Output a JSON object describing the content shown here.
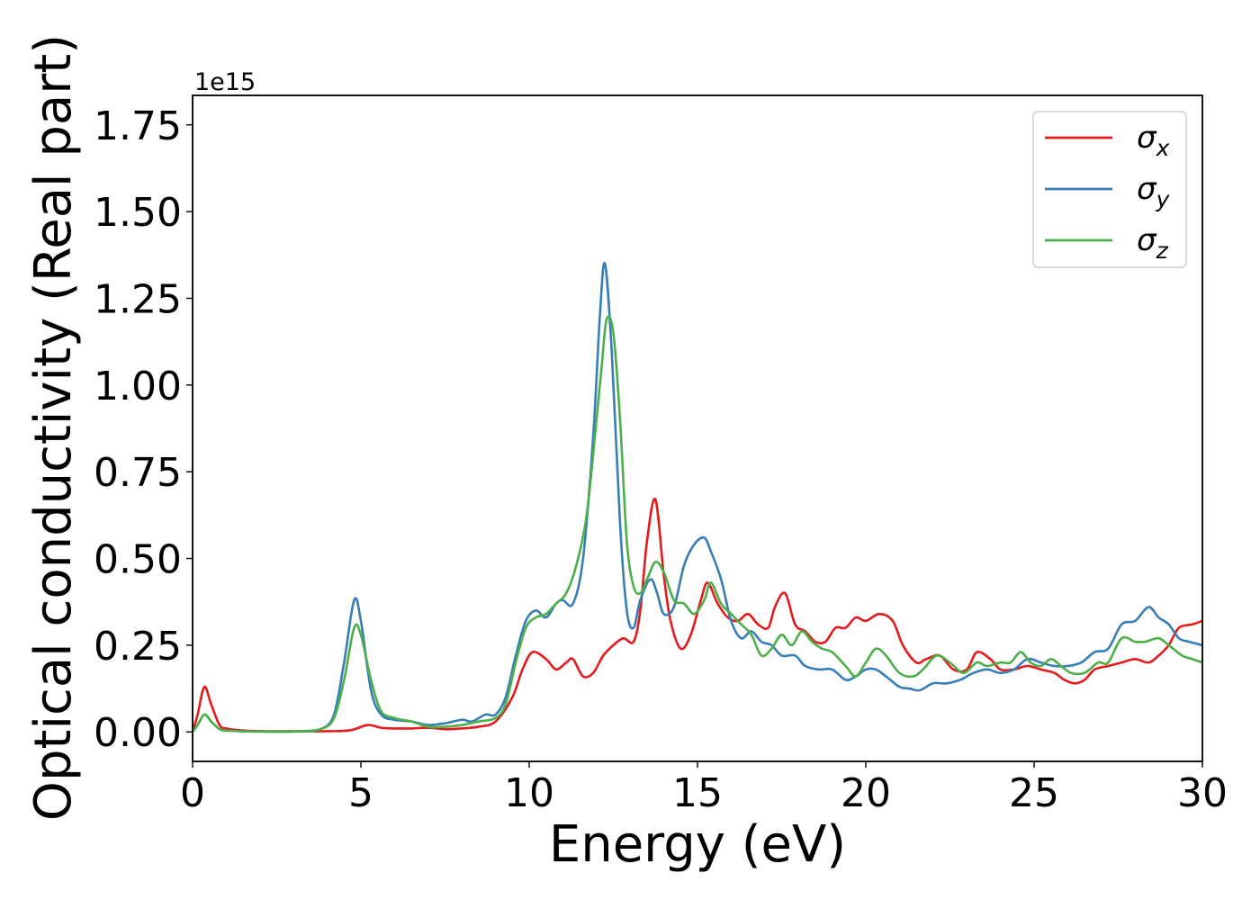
{
  "chart_data": {
    "type": "line",
    "title": "",
    "xlabel": "Energy (eV)",
    "ylabel": "Optical conductivity (Real part)",
    "y_offset_text": "1e15",
    "y_scale_factor": 1000000000000000.0,
    "xlim": [
      0,
      30
    ],
    "ylim": [
      -0.085,
      1.835
    ],
    "xticks": [
      0,
      5,
      10,
      15,
      20,
      25,
      30
    ],
    "xtick_labels": [
      "0",
      "5",
      "10",
      "15",
      "20",
      "25",
      "30"
    ],
    "yticks": [
      0.0,
      0.25,
      0.5,
      0.75,
      1.0,
      1.25,
      1.5,
      1.75
    ],
    "ytick_labels": [
      "0.00",
      "0.25",
      "0.50",
      "0.75",
      "1.00",
      "1.25",
      "1.50",
      "1.75"
    ],
    "grid": false,
    "legend_position": "top-right",
    "series": [
      {
        "name": "σx",
        "label_main": "σ",
        "label_sub": "x",
        "color": "#e41a1c",
        "x": [
          0,
          0.15,
          0.35,
          0.55,
          0.8,
          1.0,
          1.5,
          2,
          3,
          4,
          4.7,
          5.2,
          5.6,
          6,
          6.5,
          7,
          7.5,
          8,
          8.5,
          9,
          9.5,
          9.8,
          10.1,
          10.5,
          10.8,
          11.1,
          11.3,
          11.6,
          11.9,
          12.2,
          12.5,
          12.8,
          13.1,
          13.3,
          13.5,
          13.75,
          14,
          14.2,
          14.5,
          14.8,
          15.1,
          15.3,
          15.6,
          15.9,
          16.2,
          16.5,
          16.8,
          17.1,
          17.3,
          17.6,
          17.9,
          18.2,
          18.5,
          18.8,
          19.1,
          19.4,
          19.7,
          20.0,
          20.4,
          20.8,
          21.1,
          21.5,
          21.8,
          22.2,
          22.6,
          23.0,
          23.3,
          23.7,
          24.0,
          24.4,
          24.8,
          25.2,
          25.6,
          25.9,
          26.2,
          26.5,
          26.8,
          27.2,
          27.6,
          28.0,
          28.4,
          28.7,
          29.0,
          29.3,
          29.7,
          30
        ],
        "y": [
          0.0,
          0.05,
          0.13,
          0.08,
          0.02,
          0.01,
          0.004,
          0.002,
          0.002,
          0.002,
          0.005,
          0.02,
          0.012,
          0.01,
          0.01,
          0.012,
          0.008,
          0.01,
          0.015,
          0.03,
          0.1,
          0.18,
          0.23,
          0.21,
          0.18,
          0.2,
          0.21,
          0.16,
          0.17,
          0.22,
          0.25,
          0.27,
          0.26,
          0.35,
          0.55,
          0.67,
          0.45,
          0.32,
          0.24,
          0.28,
          0.38,
          0.43,
          0.37,
          0.33,
          0.32,
          0.34,
          0.31,
          0.3,
          0.36,
          0.4,
          0.31,
          0.29,
          0.26,
          0.26,
          0.3,
          0.3,
          0.33,
          0.32,
          0.34,
          0.32,
          0.25,
          0.2,
          0.21,
          0.22,
          0.18,
          0.18,
          0.23,
          0.21,
          0.18,
          0.18,
          0.19,
          0.18,
          0.17,
          0.15,
          0.14,
          0.15,
          0.18,
          0.19,
          0.2,
          0.21,
          0.2,
          0.22,
          0.25,
          0.3,
          0.31,
          0.32
        ]
      },
      {
        "name": "σy",
        "label_main": "σ",
        "label_sub": "y",
        "color": "#377eb8",
        "x": [
          0,
          0.15,
          0.35,
          0.55,
          0.8,
          1.0,
          1.5,
          2,
          3,
          3.8,
          4.2,
          4.5,
          4.8,
          5.0,
          5.3,
          5.6,
          6,
          6.5,
          7,
          7.5,
          8,
          8.3,
          8.7,
          9,
          9.3,
          9.6,
          9.9,
          10.2,
          10.5,
          10.8,
          11.0,
          11.3,
          11.6,
          11.9,
          12.1,
          12.25,
          12.45,
          12.7,
          12.9,
          13.1,
          13.3,
          13.6,
          13.8,
          14.0,
          14.3,
          14.6,
          14.9,
          15.2,
          15.4,
          15.7,
          16.0,
          16.3,
          16.6,
          16.9,
          17.2,
          17.5,
          17.9,
          18.2,
          18.6,
          19.0,
          19.4,
          19.7,
          20.0,
          20.3,
          20.6,
          21.0,
          21.3,
          21.6,
          22.0,
          22.4,
          22.8,
          23.2,
          23.6,
          24.0,
          24.4,
          24.8,
          25.2,
          25.6,
          26.0,
          26.4,
          26.8,
          27.2,
          27.6,
          28.0,
          28.4,
          28.7,
          29.0,
          29.3,
          29.6,
          30
        ],
        "y": [
          0.0,
          0.02,
          0.05,
          0.03,
          0.008,
          0.004,
          0.002,
          0.001,
          0.001,
          0.008,
          0.05,
          0.2,
          0.38,
          0.32,
          0.12,
          0.05,
          0.035,
          0.03,
          0.02,
          0.025,
          0.035,
          0.03,
          0.05,
          0.05,
          0.1,
          0.22,
          0.32,
          0.35,
          0.33,
          0.37,
          0.38,
          0.37,
          0.5,
          0.85,
          1.2,
          1.35,
          1.1,
          0.6,
          0.35,
          0.3,
          0.38,
          0.44,
          0.4,
          0.34,
          0.36,
          0.48,
          0.54,
          0.56,
          0.52,
          0.44,
          0.32,
          0.27,
          0.29,
          0.26,
          0.25,
          0.22,
          0.22,
          0.19,
          0.18,
          0.18,
          0.15,
          0.16,
          0.18,
          0.18,
          0.16,
          0.13,
          0.125,
          0.12,
          0.14,
          0.14,
          0.15,
          0.17,
          0.18,
          0.17,
          0.18,
          0.21,
          0.2,
          0.19,
          0.19,
          0.2,
          0.23,
          0.24,
          0.31,
          0.32,
          0.36,
          0.33,
          0.31,
          0.27,
          0.26,
          0.25
        ]
      },
      {
        "name": "σz",
        "label_main": "σ",
        "label_sub": "z",
        "color": "#4daf4a",
        "x": [
          0,
          0.15,
          0.35,
          0.55,
          0.8,
          1.0,
          1.5,
          2,
          3,
          3.8,
          4.2,
          4.5,
          4.8,
          5.0,
          5.3,
          5.6,
          6,
          6.5,
          7,
          7.5,
          8,
          8.5,
          9,
          9.3,
          9.6,
          9.9,
          10.2,
          10.5,
          10.8,
          11.1,
          11.4,
          11.7,
          11.95,
          12.15,
          12.3,
          12.5,
          12.7,
          12.9,
          13.1,
          13.3,
          13.5,
          13.75,
          14.0,
          14.3,
          14.6,
          14.9,
          15.2,
          15.4,
          15.7,
          16.0,
          16.3,
          16.6,
          16.9,
          17.2,
          17.5,
          17.8,
          18.1,
          18.4,
          18.7,
          19.0,
          19.4,
          19.7,
          20.0,
          20.3,
          20.6,
          21.0,
          21.4,
          21.7,
          22.1,
          22.5,
          22.9,
          23.3,
          23.6,
          24.0,
          24.3,
          24.6,
          24.9,
          25.2,
          25.5,
          25.8,
          26.1,
          26.5,
          26.9,
          27.2,
          27.6,
          28.0,
          28.3,
          28.7,
          29.0,
          29.4,
          29.7,
          30
        ],
        "y": [
          0.0,
          0.02,
          0.05,
          0.03,
          0.008,
          0.004,
          0.002,
          0.001,
          0.001,
          0.008,
          0.04,
          0.15,
          0.3,
          0.28,
          0.15,
          0.06,
          0.04,
          0.03,
          0.015,
          0.015,
          0.02,
          0.03,
          0.04,
          0.08,
          0.2,
          0.3,
          0.33,
          0.34,
          0.37,
          0.4,
          0.48,
          0.62,
          0.85,
          1.05,
          1.19,
          1.15,
          0.9,
          0.55,
          0.42,
          0.4,
          0.44,
          0.49,
          0.46,
          0.38,
          0.37,
          0.34,
          0.38,
          0.43,
          0.37,
          0.34,
          0.31,
          0.28,
          0.22,
          0.24,
          0.28,
          0.25,
          0.29,
          0.26,
          0.24,
          0.23,
          0.19,
          0.16,
          0.2,
          0.24,
          0.22,
          0.17,
          0.16,
          0.18,
          0.22,
          0.2,
          0.17,
          0.2,
          0.19,
          0.2,
          0.2,
          0.23,
          0.2,
          0.19,
          0.21,
          0.19,
          0.17,
          0.17,
          0.2,
          0.2,
          0.27,
          0.26,
          0.26,
          0.27,
          0.25,
          0.22,
          0.21,
          0.2
        ]
      }
    ]
  }
}
